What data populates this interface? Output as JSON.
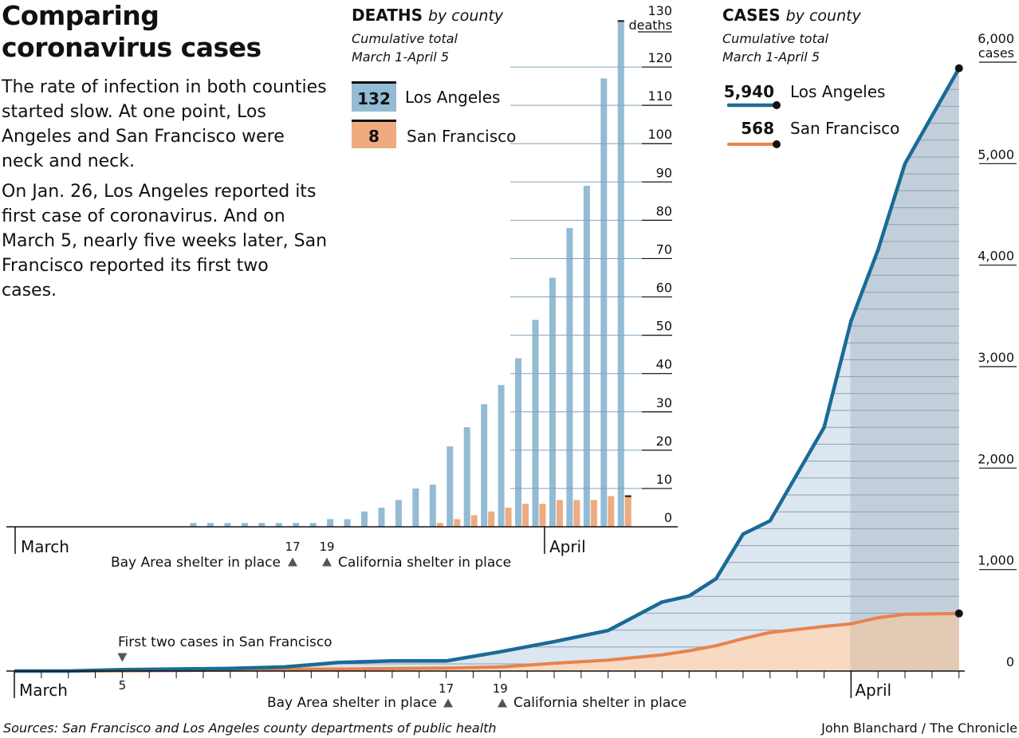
{
  "header": {
    "title": "Comparing coronavirus cases",
    "intro_p1": "The rate of infection in both counties started slow. At one point, Los Angeles and San Francisco were neck and neck.",
    "intro_p2": "On Jan. 26, Los Angeles reported its first case of coronavirus. And on March 5, nearly five weeks later, San Francisco reported its first two cases."
  },
  "deaths_panel": {
    "title": "DEATHS",
    "title_suffix": "by county",
    "subtitle_line1": "Cumulative total",
    "subtitle_line2": "March 1-April 5",
    "legend": [
      {
        "value": "132",
        "label": "Los Angeles"
      },
      {
        "value": "8",
        "label": "San Francisco"
      }
    ]
  },
  "cases_panel": {
    "title": "CASES",
    "title_suffix": "by county",
    "subtitle_line1": "Cumulative total",
    "subtitle_line2": "March 1-April 5",
    "legend": [
      {
        "value": "5,940",
        "label": "Los Angeles"
      },
      {
        "value": "568",
        "label": "San Francisco"
      }
    ]
  },
  "footer": {
    "source": "Sources: San Francisco and Los Angeles county departments of public health",
    "credit": "John Blanchard / The Chronicle"
  },
  "colors": {
    "la_bar": "#93bbd4",
    "la_bar_grid": "#7fa3bb",
    "sf_bar": "#efab80",
    "la_line": "#1a6b96",
    "sf_line": "#e8824d",
    "la_area": "#dbe6f0",
    "la_area_april": "#c2cfda",
    "sf_area": "#f8d9c2",
    "sf_area_april": "#e3cab4",
    "grid": "#8aa0b4"
  },
  "chart_data": [
    {
      "type": "bar",
      "title": "DEATHS by county",
      "subtitle": "Cumulative total March 1-April 5",
      "unit_label": "deaths",
      "ylim": [
        0,
        130
      ],
      "yticks": [
        0,
        10,
        20,
        30,
        40,
        50,
        60,
        70,
        80,
        90,
        100,
        110,
        120,
        130
      ],
      "ytick_labels": [
        "0",
        "10",
        "20",
        "30",
        "40",
        "50",
        "60",
        "70",
        "80",
        "90",
        "100",
        "110",
        "120",
        "130"
      ],
      "x": [
        "03-01",
        "03-02",
        "03-03",
        "03-04",
        "03-05",
        "03-06",
        "03-07",
        "03-08",
        "03-09",
        "03-10",
        "03-11",
        "03-12",
        "03-13",
        "03-14",
        "03-15",
        "03-16",
        "03-17",
        "03-18",
        "03-19",
        "03-20",
        "03-21",
        "03-22",
        "03-23",
        "03-24",
        "03-25",
        "03-26",
        "03-27",
        "03-28",
        "03-29",
        "03-30",
        "03-31",
        "04-01",
        "04-02",
        "04-03",
        "04-04",
        "04-05"
      ],
      "xtick_labels": [
        {
          "date": "03-01",
          "label": "March"
        },
        {
          "date": "03-17",
          "label": "17"
        },
        {
          "date": "03-19",
          "label": "19"
        },
        {
          "date": "04-01",
          "label": "April"
        }
      ],
      "series": [
        {
          "name": "Los Angeles",
          "values": [
            0,
            0,
            0,
            0,
            0,
            0,
            0,
            0,
            0,
            0,
            1,
            1,
            1,
            1,
            1,
            1,
            1,
            1,
            2,
            2,
            4,
            5,
            7,
            10,
            11,
            21,
            26,
            32,
            37,
            44,
            54,
            65,
            78,
            89,
            117,
            132
          ]
        },
        {
          "name": "San Francisco",
          "values": [
            0,
            0,
            0,
            0,
            0,
            0,
            0,
            0,
            0,
            0,
            0,
            0,
            0,
            0,
            0,
            0,
            0,
            0,
            0,
            0,
            0,
            0,
            0,
            0,
            1,
            2,
            3,
            4,
            5,
            6,
            6,
            7,
            7,
            7,
            8,
            8
          ]
        }
      ],
      "annotations": [
        {
          "date": "03-17",
          "text": "Bay Area shelter in place"
        },
        {
          "date": "03-19",
          "text": "California shelter in place"
        }
      ]
    },
    {
      "type": "area",
      "title": "CASES by county",
      "subtitle": "Cumulative total March 1-April 5",
      "unit_label": "cases",
      "ylim": [
        0,
        6000
      ],
      "yticks": [
        0,
        1000,
        2000,
        3000,
        4000,
        5000,
        6000
      ],
      "ytick_labels": [
        "0",
        "1,000",
        "2,000",
        "3,000",
        "4,000",
        "5,000",
        "6,000"
      ],
      "x": [
        "03-01",
        "03-03",
        "03-05",
        "03-07",
        "03-09",
        "03-11",
        "03-13",
        "03-15",
        "03-17",
        "03-19",
        "03-21",
        "03-23",
        "03-25",
        "03-26",
        "03-27",
        "03-28",
        "03-29",
        "03-31",
        "04-01",
        "04-02",
        "04-03",
        "04-05"
      ],
      "xtick_labels": [
        {
          "date": "03-01",
          "label": "March"
        },
        {
          "date": "03-05",
          "label": "5"
        },
        {
          "date": "03-17",
          "label": "17"
        },
        {
          "date": "03-19",
          "label": "19"
        },
        {
          "date": "04-01",
          "label": "April"
        }
      ],
      "series": [
        {
          "name": "Los Angeles",
          "values": [
            0,
            0,
            14,
            20,
            25,
            40,
            85,
            100,
            100,
            190,
            290,
            400,
            680,
            740,
            910,
            1350,
            1480,
            2400,
            3450,
            4150,
            5000,
            5940
          ]
        },
        {
          "name": "San Francisco",
          "values": [
            0,
            0,
            2,
            5,
            10,
            18,
            20,
            24,
            30,
            40,
            76,
            108,
            160,
            200,
            250,
            320,
            380,
            440,
            465,
            525,
            560,
            568
          ]
        }
      ],
      "annotations": [
        {
          "date": "03-05",
          "text": "First two cases in San Francisco"
        },
        {
          "date": "03-17",
          "text": "Bay Area shelter in place"
        },
        {
          "date": "03-19",
          "text": "California shelter in place"
        }
      ]
    }
  ]
}
